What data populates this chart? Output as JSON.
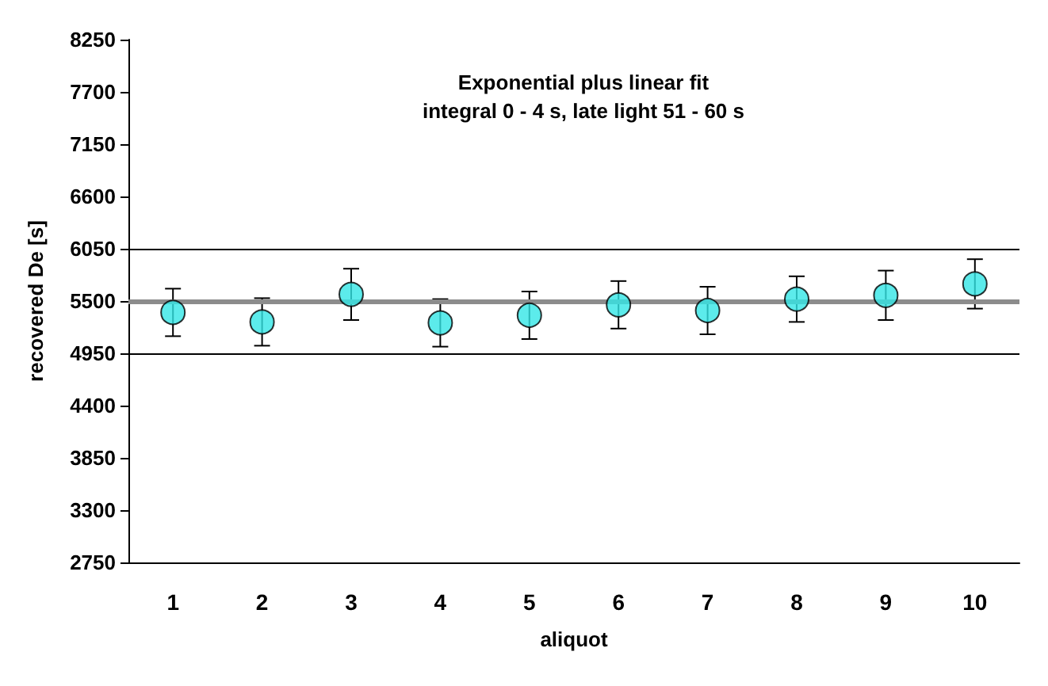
{
  "chart_data": {
    "type": "scatter",
    "xlabel": "aliquot",
    "ylabel": "recovered De [s]",
    "annotations": [
      "Exponential plus linear fit",
      "integral 0 - 4 s, late light 51 - 60 s"
    ],
    "categories": [
      "1",
      "2",
      "3",
      "4",
      "5",
      "6",
      "7",
      "8",
      "9",
      "10"
    ],
    "series": [
      {
        "color": "#33e6e6",
        "values": [
          5380,
          5280,
          5570,
          5270,
          5350,
          5460,
          5400,
          5520,
          5560,
          5680
        ],
        "errors": [
          250,
          250,
          270,
          250,
          250,
          250,
          250,
          240,
          260,
          260
        ]
      }
    ],
    "ylim": [
      2750,
      8250
    ],
    "yticks": [
      2750,
      3300,
      3850,
      4400,
      4950,
      5500,
      6050,
      6600,
      7150,
      7700,
      8250
    ],
    "ref_lines": [
      {
        "axis": "y",
        "value": 5500,
        "color": "#8c8c8c"
      },
      {
        "axis": "y",
        "value": 6050,
        "color": "#000000"
      },
      {
        "axis": "y",
        "value": 4950,
        "color": "#000000"
      }
    ],
    "marker": "circle",
    "grid": false
  }
}
